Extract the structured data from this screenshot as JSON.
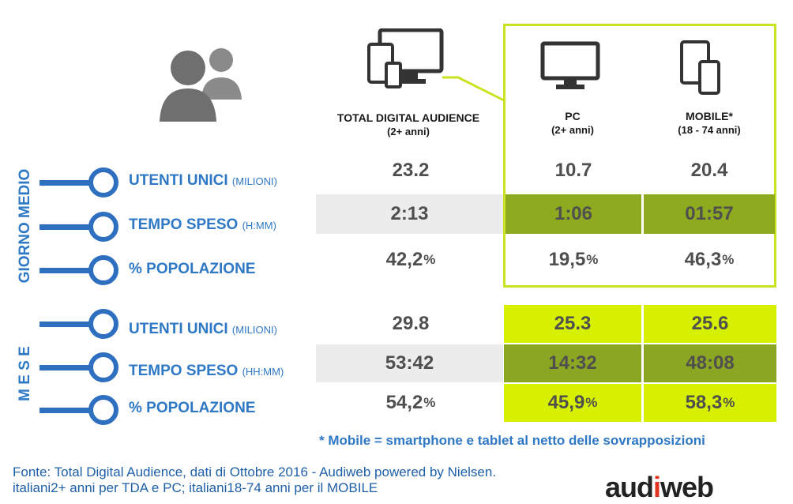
{
  "title": "",
  "columns": {
    "tda": {
      "label": "TOTAL DIGITAL AUDIENCE",
      "sub": "(2+ anni)"
    },
    "pc": {
      "label": "PC",
      "sub": "(2+ anni)"
    },
    "mobile": {
      "label": "MOBILE*",
      "sub": "(18 - 74 anni)"
    }
  },
  "sections": {
    "giorno": "GIORNO MEDIO",
    "mese": "M E S E"
  },
  "rows": [
    {
      "label": "UTENTI UNICI",
      "unit": "(MILIONI)",
      "tda": "23.2",
      "pc": "10.7",
      "mobile": "20.4"
    },
    {
      "label": "TEMPO SPESO",
      "unit": "(H:MM)",
      "tda": "2:13",
      "pc": "1:06",
      "mobile": "01:57"
    },
    {
      "label": "% POPOLAZIONE",
      "unit": "",
      "tda": "42,2",
      "pc": "19,5",
      "mobile": "46,3"
    },
    {
      "label": "UTENTI UNICI",
      "unit": "(MILIONI)",
      "tda": "29.8",
      "pc": "25.3",
      "mobile": "25.6"
    },
    {
      "label": "TEMPO SPESO",
      "unit": "(HH:MM)",
      "tda": "53:42",
      "pc": "14:32",
      "mobile": "48:08"
    },
    {
      "label": "% POPOLAZIONE",
      "unit": "",
      "tda": "54,2",
      "pc": "45,9",
      "mobile": "58,3"
    }
  ],
  "pct_symbol": "%",
  "note": "* Mobile = smartphone e tablet al netto delle sovrapposizioni",
  "source_line1": "Fonte: Total Digital Audience, dati di Ottobre 2016 - Audiweb powered by Nielsen.",
  "source_line2": "italiani2+ anni per TDA e PC; italiani18-74 anni per il MOBILE",
  "logo": {
    "part1": "aud",
    "slash": "i",
    "part2": "web"
  },
  "colors": {
    "blue": "#2e78c5",
    "lime": "#d6f000",
    "olive": "#8eaa1f",
    "grey_row": "#ececec",
    "icon_grey": "#6f6f6f",
    "frame": "#c9e320"
  }
}
